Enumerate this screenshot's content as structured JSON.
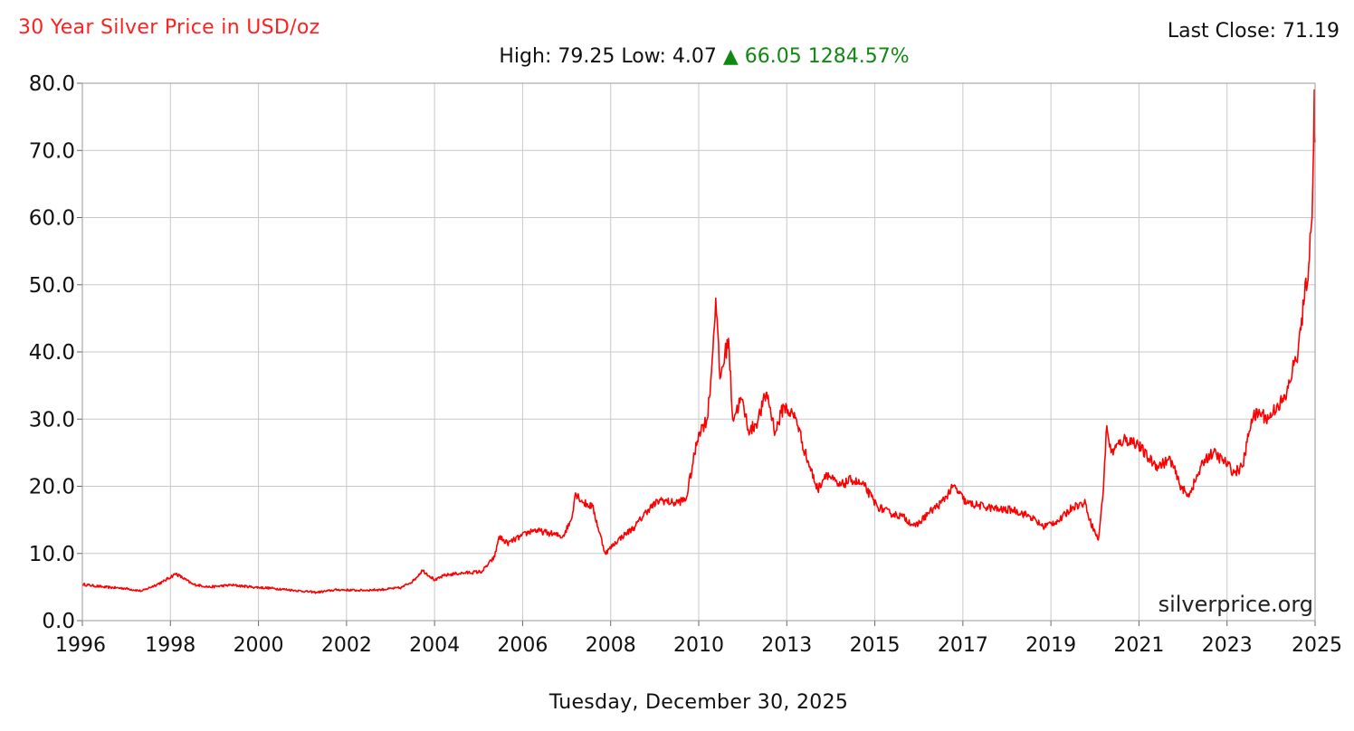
{
  "header": {
    "title": "30 Year Silver Price in USD/oz",
    "last_close_label": "Last Close: 71.19",
    "high_low_label": "High: 79.25 Low: 4.07",
    "change_arrow": "▲",
    "change_value": "66.05",
    "change_percent": "1284.57%"
  },
  "footer": {
    "date": "Tuesday, December 30, 2025",
    "watermark": "silverprice.org"
  },
  "colors": {
    "line": "#ff0000",
    "title": "#ff2020",
    "up": "#118811",
    "grid": "#c8c8c8"
  },
  "chart_data": {
    "type": "line",
    "title": "30 Year Silver Price in USD/oz",
    "xlabel": "",
    "ylabel": "",
    "xlim": [
      1996,
      2025
    ],
    "ylim": [
      0,
      80
    ],
    "grid": true,
    "yticks": [
      0,
      10,
      20,
      30,
      40,
      50,
      60,
      70,
      80
    ],
    "ytick_labels": [
      "0.0",
      "10.0",
      "20.0",
      "30.0",
      "40.0",
      "50.0",
      "60.0",
      "70.0",
      "80.0"
    ],
    "xtick_labels": [
      "1996",
      "1998",
      "2000",
      "2002",
      "2004",
      "2006",
      "2008",
      "2010",
      "2013",
      "2015",
      "2017",
      "2019",
      "2021",
      "2023",
      "2025"
    ],
    "stats": {
      "high": 79.25,
      "low": 4.07,
      "change": 66.05,
      "change_percent": 1284.57,
      "last_close": 71.19
    },
    "series": [
      {
        "x": [
          1996.0,
          1996.5,
          1997.0,
          1997.4,
          1997.9,
          1998.2,
          1998.6,
          1999.0,
          1999.5,
          2000.0,
          2000.5,
          2001.0,
          2001.5,
          2002.0,
          2002.5,
          2003.0,
          2003.5,
          2003.8,
          2004.0,
          2004.3,
          2004.5,
          2004.8,
          2005.0,
          2005.4,
          2005.7,
          2005.8,
          2006.0,
          2006.3,
          2006.6,
          2007.0,
          2007.3,
          2007.5,
          2007.6,
          2007.8,
          2008.0,
          2008.3,
          2008.6,
          2009.0,
          2009.3,
          2009.6,
          2009.9,
          2010.2,
          2010.5,
          2010.7,
          2010.8,
          2010.9,
          2011.0,
          2011.2,
          2011.3,
          2011.5,
          2011.7,
          2011.9,
          2012.1,
          2012.3,
          2012.5,
          2012.8,
          2013.0,
          2013.3,
          2013.5,
          2013.8,
          2014.1,
          2014.4,
          2014.7,
          2015.0,
          2015.3,
          2015.6,
          2015.9,
          2016.2,
          2016.5,
          2016.8,
          2017.2,
          2017.6,
          2017.9,
          2018.3,
          2018.6,
          2019.0,
          2019.3,
          2019.6,
          2019.7,
          2019.9,
          2020.0,
          2020.1,
          2020.2,
          2020.5,
          2020.8,
          2021.1,
          2021.3,
          2021.6,
          2021.8,
          2022.0,
          2022.2,
          2022.4,
          2022.6,
          2022.9,
          2023.1,
          2023.3,
          2023.5,
          2023.7,
          2023.9,
          2024.1,
          2024.3,
          2024.5,
          2024.6,
          2024.75,
          2024.85,
          2024.93,
          2024.98,
          2025.0
        ],
        "y": [
          5.4,
          5.0,
          4.8,
          4.4,
          5.8,
          7.0,
          5.4,
          5.0,
          5.3,
          5.0,
          4.8,
          4.5,
          4.2,
          4.6,
          4.5,
          4.6,
          4.9,
          6.0,
          7.5,
          6.0,
          6.7,
          7.0,
          7.1,
          7.3,
          9.5,
          12.5,
          11.5,
          12.5,
          13.5,
          13.0,
          12.5,
          15.0,
          19.0,
          17.5,
          17.0,
          10.0,
          12.0,
          14.0,
          16.5,
          18.0,
          17.5,
          18.0,
          28.0,
          30.0,
          37.0,
          48.0,
          36.0,
          42.0,
          30.0,
          33.0,
          28.0,
          30.0,
          34.0,
          28.0,
          32.0,
          30.0,
          25.0,
          19.5,
          22.0,
          20.0,
          21.0,
          20.0,
          17.0,
          16.0,
          15.5,
          14.0,
          16.0,
          17.5,
          20.0,
          17.5,
          17.0,
          16.5,
          16.5,
          15.5,
          14.0,
          15.0,
          17.0,
          17.5,
          15.0,
          12.0,
          18.0,
          29.0,
          25.0,
          27.0,
          26.5,
          24.0,
          23.0,
          24.0,
          20.5,
          18.5,
          21.0,
          24.0,
          25.0,
          23.5,
          22.0,
          23.0,
          30.0,
          31.0,
          30.0,
          32.0,
          33.0,
          38.0,
          40.0,
          48.0,
          53.0,
          60.0,
          79.0,
          71.2
        ]
      }
    ]
  }
}
